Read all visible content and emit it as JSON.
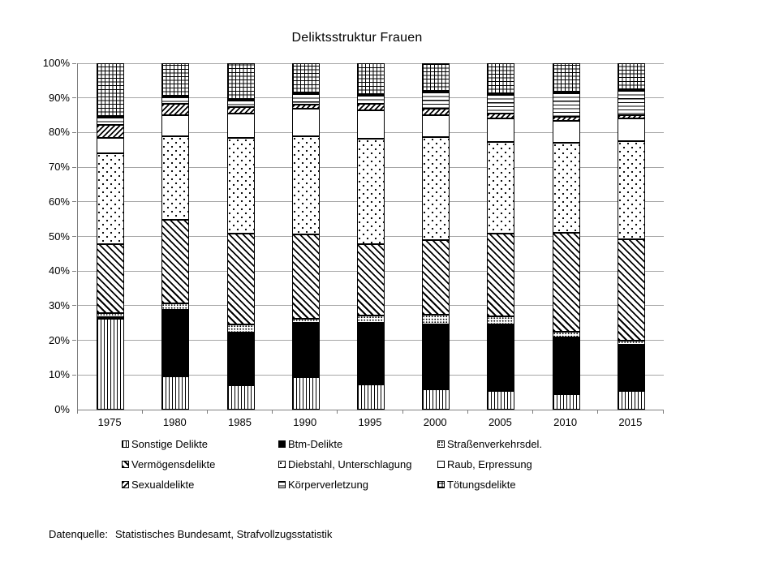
{
  "title": "Deliktsstruktur Frauen",
  "source": {
    "label": "Datenquelle:",
    "text": "Statistisches Bundesamt, Strafvollzugsstatistik"
  },
  "chart_data": {
    "type": "bar",
    "stacked": true,
    "stacking": "percent",
    "title": "Deliktsstruktur Frauen",
    "xlabel": "",
    "ylabel": "",
    "ylim": [
      0,
      100
    ],
    "ytick_step": 10,
    "y_tick_labels": [
      "0%",
      "10%",
      "20%",
      "30%",
      "40%",
      "50%",
      "60%",
      "70%",
      "80%",
      "90%",
      "100%"
    ],
    "grid": true,
    "legend_position": "bottom",
    "categories": [
      "1975",
      "1980",
      "1985",
      "1990",
      "1995",
      "2000",
      "2005",
      "2010",
      "2015"
    ],
    "series": [
      {
        "name": "Sonstige Delikte",
        "pattern": "vertical-lines",
        "values": [
          26.2,
          9.6,
          7.0,
          9.3,
          7.2,
          5.9,
          5.5,
          4.5,
          5.4
        ]
      },
      {
        "name": "Btm-Delikte",
        "pattern": "solid-black",
        "values": [
          0.4,
          19.3,
          15.2,
          15.8,
          17.8,
          18.8,
          19.2,
          16.3,
          13.3
        ]
      },
      {
        "name": "Straßenverkehrsdel.",
        "pattern": "dense-dots",
        "values": [
          1.2,
          1.9,
          2.3,
          1.2,
          2.1,
          2.8,
          2.2,
          1.7,
          1.1
        ]
      },
      {
        "name": "Vermögensdelikte",
        "pattern": "diagonal-backslash",
        "values": [
          20.0,
          24.0,
          26.4,
          24.2,
          20.8,
          21.5,
          23.9,
          28.5,
          29.3
        ]
      },
      {
        "name": "Diebstahl, Unterschlagung",
        "pattern": "sparse-dots",
        "values": [
          26.1,
          24.2,
          27.6,
          28.5,
          30.3,
          29.8,
          26.6,
          26.0,
          28.5
        ]
      },
      {
        "name": "Raub, Erpressung",
        "pattern": "white",
        "values": [
          4.6,
          6.1,
          7.0,
          7.9,
          8.3,
          6.2,
          6.8,
          6.5,
          6.4
        ]
      },
      {
        "name": "Sexualdelikte",
        "pattern": "diagonal-slash",
        "values": [
          3.7,
          3.3,
          1.8,
          1.1,
          1.8,
          1.9,
          1.3,
          1.0,
          1.1
        ]
      },
      {
        "name": "Körperverletzung",
        "pattern": "horizontal-lines",
        "values": [
          2.2,
          2.1,
          2.1,
          3.4,
          2.5,
          4.9,
          5.7,
          7.0,
          7.3
        ]
      },
      {
        "name": "Tötungsdelikte",
        "pattern": "grid",
        "values": [
          15.6,
          9.5,
          10.6,
          8.6,
          9.2,
          8.2,
          8.8,
          8.5,
          7.6
        ]
      }
    ]
  }
}
